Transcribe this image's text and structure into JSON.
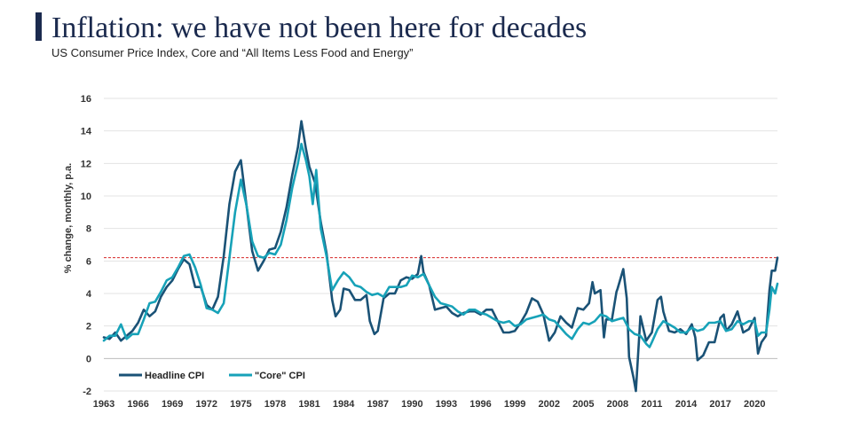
{
  "title": "Inflation: we have not been here for decades",
  "subtitle": "US Consumer Price Index, Core and “All Items Less Food and Energy”",
  "chart_data": {
    "type": "line",
    "ylabel": "% change, monthly, p.a.",
    "xlabel": "",
    "xlim": [
      1963,
      2022
    ],
    "ylim": [
      -2,
      16
    ],
    "y_ticks": [
      -2,
      0,
      2,
      4,
      6,
      8,
      10,
      12,
      14,
      16
    ],
    "x_ticks": [
      1963,
      1966,
      1969,
      1972,
      1975,
      1978,
      1981,
      1984,
      1987,
      1990,
      1993,
      1996,
      1999,
      2002,
      2005,
      2008,
      2011,
      2014,
      2017,
      2020
    ],
    "grid": true,
    "legend_position": "bottom-left",
    "reference_line": {
      "y": 6.2,
      "style": "dashed",
      "color": "#d62728"
    },
    "series": [
      {
        "name": "Headline CPI",
        "color": "#1a5276",
        "points": [
          [
            1963,
            1.3
          ],
          [
            1963.5,
            1.2
          ],
          [
            1964,
            1.6
          ],
          [
            1964.5,
            1.1
          ],
          [
            1965,
            1.4
          ],
          [
            1965.5,
            1.7
          ],
          [
            1966,
            2.2
          ],
          [
            1966.5,
            3.0
          ],
          [
            1967,
            2.6
          ],
          [
            1967.5,
            2.9
          ],
          [
            1968,
            3.8
          ],
          [
            1968.5,
            4.4
          ],
          [
            1969,
            4.8
          ],
          [
            1969.5,
            5.5
          ],
          [
            1970,
            6.1
          ],
          [
            1970.5,
            5.8
          ],
          [
            1971,
            4.4
          ],
          [
            1971.5,
            4.4
          ],
          [
            1972,
            3.3
          ],
          [
            1972.5,
            3.0
          ],
          [
            1973,
            3.8
          ],
          [
            1973.5,
            6.3
          ],
          [
            1974,
            9.5
          ],
          [
            1974.5,
            11.5
          ],
          [
            1975,
            12.2
          ],
          [
            1975.5,
            9.4
          ],
          [
            1976,
            6.6
          ],
          [
            1976.5,
            5.4
          ],
          [
            1977,
            6.0
          ],
          [
            1977.5,
            6.7
          ],
          [
            1978,
            6.8
          ],
          [
            1978.5,
            7.8
          ],
          [
            1979,
            9.3
          ],
          [
            1979.5,
            11.3
          ],
          [
            1980,
            13.0
          ],
          [
            1980.3,
            14.6
          ],
          [
            1980.7,
            12.9
          ],
          [
            1981,
            11.8
          ],
          [
            1981.5,
            10.8
          ],
          [
            1982,
            8.4
          ],
          [
            1982.5,
            6.5
          ],
          [
            1983,
            3.6
          ],
          [
            1983.3,
            2.6
          ],
          [
            1983.7,
            3.0
          ],
          [
            1984,
            4.3
          ],
          [
            1984.5,
            4.2
          ],
          [
            1985,
            3.6
          ],
          [
            1985.5,
            3.6
          ],
          [
            1986,
            3.9
          ],
          [
            1986.3,
            2.3
          ],
          [
            1986.7,
            1.5
          ],
          [
            1987,
            1.7
          ],
          [
            1987.5,
            3.7
          ],
          [
            1988,
            4.0
          ],
          [
            1988.5,
            4.0
          ],
          [
            1989,
            4.8
          ],
          [
            1989.5,
            5.0
          ],
          [
            1990,
            4.9
          ],
          [
            1990.5,
            5.2
          ],
          [
            1990.8,
            6.3
          ],
          [
            1991,
            5.3
          ],
          [
            1991.5,
            4.5
          ],
          [
            1992,
            3.0
          ],
          [
            1992.5,
            3.1
          ],
          [
            1993,
            3.2
          ],
          [
            1993.5,
            2.8
          ],
          [
            1994,
            2.6
          ],
          [
            1994.5,
            2.8
          ],
          [
            1995,
            2.9
          ],
          [
            1995.5,
            2.9
          ],
          [
            1996,
            2.7
          ],
          [
            1996.5,
            3.0
          ],
          [
            1997,
            3.0
          ],
          [
            1997.5,
            2.3
          ],
          [
            1998,
            1.6
          ],
          [
            1998.5,
            1.6
          ],
          [
            1999,
            1.7
          ],
          [
            1999.5,
            2.2
          ],
          [
            2000,
            2.8
          ],
          [
            2000.5,
            3.7
          ],
          [
            2001,
            3.5
          ],
          [
            2001.5,
            2.7
          ],
          [
            2002,
            1.1
          ],
          [
            2002.5,
            1.6
          ],
          [
            2003,
            2.6
          ],
          [
            2003.5,
            2.2
          ],
          [
            2004,
            1.9
          ],
          [
            2004.5,
            3.1
          ],
          [
            2005,
            3.0
          ],
          [
            2005.5,
            3.4
          ],
          [
            2005.8,
            4.7
          ],
          [
            2006,
            4.0
          ],
          [
            2006.5,
            4.2
          ],
          [
            2006.8,
            1.3
          ],
          [
            2007,
            2.4
          ],
          [
            2007.5,
            2.4
          ],
          [
            2007.9,
            4.1
          ],
          [
            2008,
            4.3
          ],
          [
            2008.5,
            5.5
          ],
          [
            2008.8,
            3.7
          ],
          [
            2009,
            0.1
          ],
          [
            2009.4,
            -1.2
          ],
          [
            2009.6,
            -2.0
          ],
          [
            2010,
            2.6
          ],
          [
            2010.5,
            1.1
          ],
          [
            2011,
            1.6
          ],
          [
            2011.5,
            3.6
          ],
          [
            2011.8,
            3.8
          ],
          [
            2012,
            2.9
          ],
          [
            2012.5,
            1.7
          ],
          [
            2013,
            1.6
          ],
          [
            2013.5,
            1.8
          ],
          [
            2014,
            1.5
          ],
          [
            2014.5,
            2.1
          ],
          [
            2014.8,
            1.3
          ],
          [
            2015,
            -0.1
          ],
          [
            2015.5,
            0.2
          ],
          [
            2016,
            1.0
          ],
          [
            2016.5,
            1.0
          ],
          [
            2017,
            2.5
          ],
          [
            2017.3,
            2.7
          ],
          [
            2017.5,
            1.7
          ],
          [
            2018,
            2.1
          ],
          [
            2018.5,
            2.9
          ],
          [
            2019,
            1.6
          ],
          [
            2019.5,
            1.8
          ],
          [
            2020,
            2.5
          ],
          [
            2020.3,
            0.3
          ],
          [
            2020.6,
            1.0
          ],
          [
            2021,
            1.4
          ],
          [
            2021.3,
            4.2
          ],
          [
            2021.5,
            5.4
          ],
          [
            2021.8,
            5.4
          ],
          [
            2022,
            6.2
          ]
        ]
      },
      {
        "name": "\"Core\" CPI",
        "color": "#17a2b8",
        "points": [
          [
            1963,
            1.1
          ],
          [
            1963.5,
            1.4
          ],
          [
            1964,
            1.4
          ],
          [
            1964.5,
            2.1
          ],
          [
            1965,
            1.2
          ],
          [
            1965.5,
            1.5
          ],
          [
            1966,
            1.5
          ],
          [
            1966.5,
            2.4
          ],
          [
            1967,
            3.4
          ],
          [
            1967.5,
            3.5
          ],
          [
            1968,
            4.1
          ],
          [
            1968.5,
            4.8
          ],
          [
            1969,
            5.0
          ],
          [
            1969.5,
            5.6
          ],
          [
            1970,
            6.3
          ],
          [
            1970.5,
            6.4
          ],
          [
            1971,
            5.6
          ],
          [
            1971.5,
            4.5
          ],
          [
            1972,
            3.1
          ],
          [
            1972.5,
            3.0
          ],
          [
            1973,
            2.8
          ],
          [
            1973.5,
            3.4
          ],
          [
            1974,
            6.2
          ],
          [
            1974.5,
            9.0
          ],
          [
            1975,
            11.0
          ],
          [
            1975.5,
            9.4
          ],
          [
            1976,
            7.2
          ],
          [
            1976.5,
            6.3
          ],
          [
            1977,
            6.2
          ],
          [
            1977.5,
            6.5
          ],
          [
            1978,
            6.4
          ],
          [
            1978.5,
            7.0
          ],
          [
            1979,
            8.5
          ],
          [
            1979.5,
            10.5
          ],
          [
            1980,
            12.0
          ],
          [
            1980.3,
            13.2
          ],
          [
            1980.7,
            12.2
          ],
          [
            1981,
            11.2
          ],
          [
            1981.3,
            9.5
          ],
          [
            1981.6,
            11.6
          ],
          [
            1982,
            8.0
          ],
          [
            1982.5,
            6.3
          ],
          [
            1983,
            4.2
          ],
          [
            1983.5,
            4.8
          ],
          [
            1984,
            5.3
          ],
          [
            1984.5,
            5.0
          ],
          [
            1985,
            4.5
          ],
          [
            1985.5,
            4.4
          ],
          [
            1986,
            4.1
          ],
          [
            1986.5,
            3.9
          ],
          [
            1987,
            4.0
          ],
          [
            1987.5,
            3.8
          ],
          [
            1988,
            4.4
          ],
          [
            1988.5,
            4.4
          ],
          [
            1989,
            4.4
          ],
          [
            1989.5,
            4.5
          ],
          [
            1990,
            5.1
          ],
          [
            1990.5,
            5.0
          ],
          [
            1991,
            5.2
          ],
          [
            1991.5,
            4.5
          ],
          [
            1992,
            3.8
          ],
          [
            1992.5,
            3.4
          ],
          [
            1993,
            3.3
          ],
          [
            1993.5,
            3.2
          ],
          [
            1994,
            2.9
          ],
          [
            1994.5,
            2.7
          ],
          [
            1995,
            3.0
          ],
          [
            1995.5,
            3.0
          ],
          [
            1996,
            2.8
          ],
          [
            1996.5,
            2.7
          ],
          [
            1997,
            2.5
          ],
          [
            1997.5,
            2.3
          ],
          [
            1998,
            2.2
          ],
          [
            1998.5,
            2.3
          ],
          [
            1999,
            2.0
          ],
          [
            1999.5,
            2.1
          ],
          [
            2000,
            2.4
          ],
          [
            2000.5,
            2.5
          ],
          [
            2001,
            2.6
          ],
          [
            2001.5,
            2.7
          ],
          [
            2002,
            2.4
          ],
          [
            2002.5,
            2.3
          ],
          [
            2003,
            1.9
          ],
          [
            2003.5,
            1.5
          ],
          [
            2004,
            1.2
          ],
          [
            2004.5,
            1.8
          ],
          [
            2005,
            2.2
          ],
          [
            2005.5,
            2.1
          ],
          [
            2006,
            2.3
          ],
          [
            2006.5,
            2.7
          ],
          [
            2007,
            2.6
          ],
          [
            2007.5,
            2.3
          ],
          [
            2008,
            2.4
          ],
          [
            2008.5,
            2.5
          ],
          [
            2009,
            1.8
          ],
          [
            2009.5,
            1.5
          ],
          [
            2010,
            1.4
          ],
          [
            2010.5,
            0.9
          ],
          [
            2010.8,
            0.7
          ],
          [
            2011,
            1.0
          ],
          [
            2011.5,
            1.8
          ],
          [
            2012,
            2.3
          ],
          [
            2012.5,
            2.1
          ],
          [
            2013,
            1.9
          ],
          [
            2013.5,
            1.6
          ],
          [
            2014,
            1.6
          ],
          [
            2014.5,
            1.9
          ],
          [
            2015,
            1.7
          ],
          [
            2015.5,
            1.8
          ],
          [
            2016,
            2.2
          ],
          [
            2016.5,
            2.2
          ],
          [
            2017,
            2.3
          ],
          [
            2017.5,
            1.7
          ],
          [
            2018,
            1.8
          ],
          [
            2018.5,
            2.3
          ],
          [
            2019,
            2.1
          ],
          [
            2019.5,
            2.3
          ],
          [
            2020,
            2.3
          ],
          [
            2020.3,
            1.4
          ],
          [
            2020.6,
            1.6
          ],
          [
            2021,
            1.6
          ],
          [
            2021.3,
            3.0
          ],
          [
            2021.5,
            4.4
          ],
          [
            2021.8,
            4.0
          ],
          [
            2022,
            4.6
          ]
        ]
      }
    ]
  }
}
